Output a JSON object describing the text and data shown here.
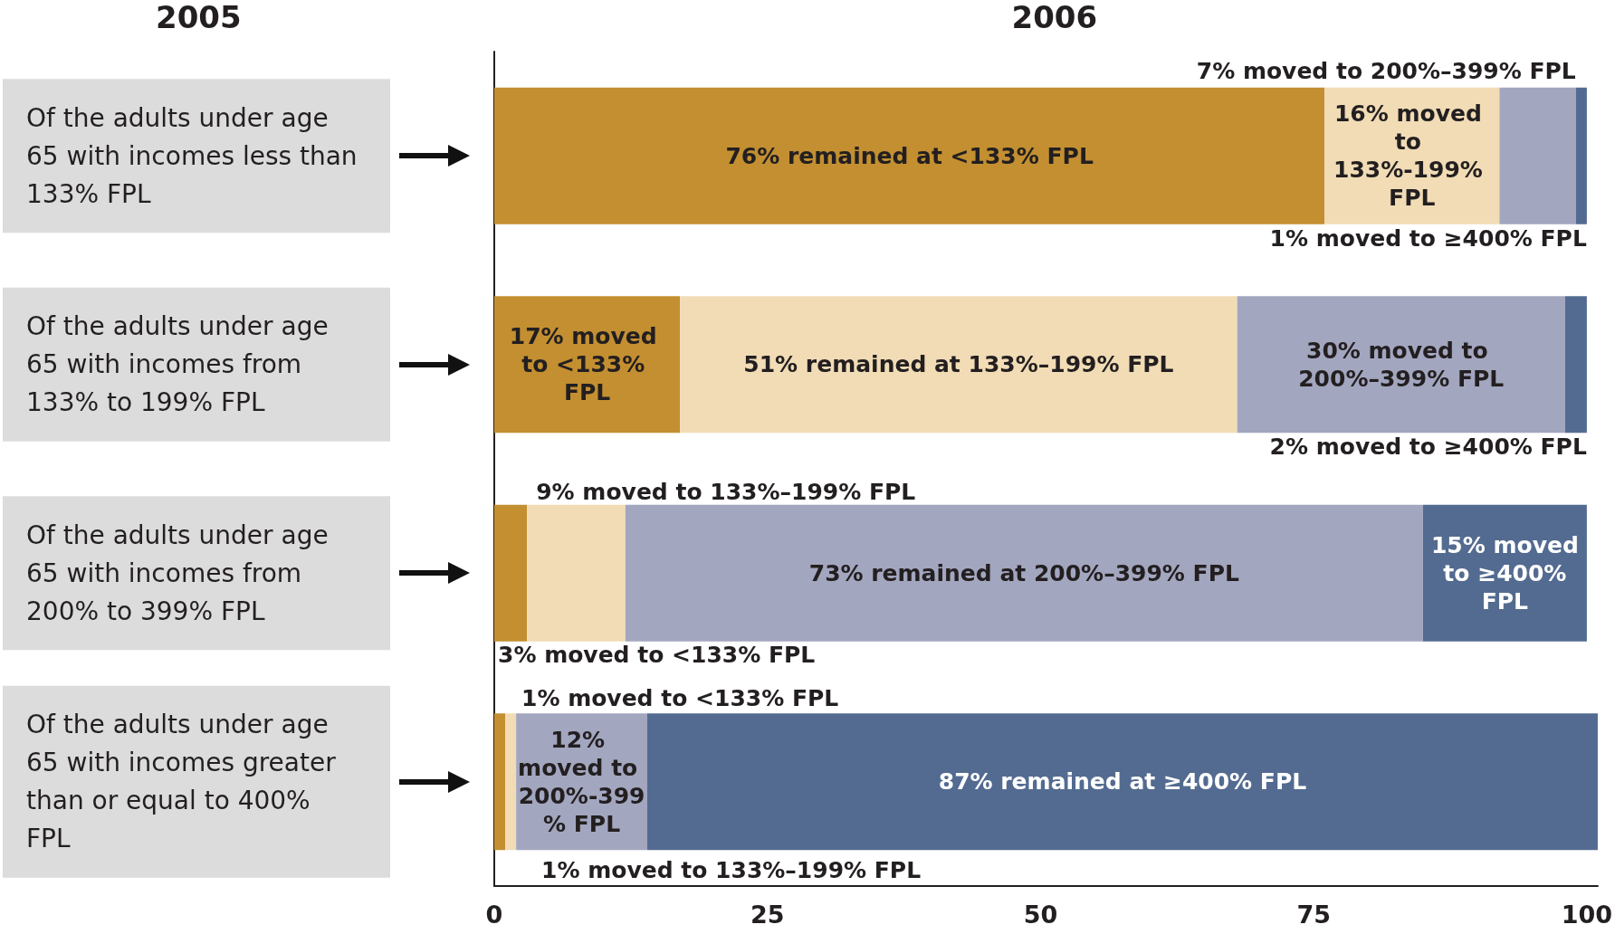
{
  "chart_data": {
    "type": "bar",
    "orientation": "horizontal",
    "stacked": true,
    "annotations": [
      "2005",
      "2006"
    ],
    "categories": [
      "Of the adults under age 65 with incomes less than 133% FPL",
      "Of the adults under age 65 with incomes from 133% to 199% FPL",
      "Of the adults under age 65 with incomes from 200% to 399% FPL",
      "Of the adults under age 65 with incomes greater than or equal to 400% FPL"
    ],
    "series": [
      {
        "color": "#c38f31",
        "values": [
          76,
          17,
          3,
          1
        ],
        "value_labels": [
          "76% remained at <133% FPL",
          "17% moved to <133% FPL",
          "3% moved to <133% FPL",
          "1% moved to <133% FPL"
        ]
      },
      {
        "color": "#f1dcb6",
        "values": [
          16,
          51,
          9,
          1
        ],
        "value_labels": [
          "16% moved to 133%-199% FPL",
          "51% remained at 133%–199% FPL",
          "9% moved to 133%–199% FPL",
          "1% moved to 133%–199% FPL"
        ]
      },
      {
        "color": "#a3a6bf",
        "values": [
          7,
          30,
          73,
          12
        ],
        "value_labels": [
          "7% moved to 200%–399% FPL",
          "30% moved to 200%–399% FPL",
          "73% remained at 200%–399% FPL",
          "12% moved to 200%-399% FPL"
        ]
      },
      {
        "color": "#536b90",
        "values": [
          1,
          2,
          15,
          87
        ],
        "value_labels": [
          "1% moved to ≥400% FPL",
          "2% moved to ≥400% FPL",
          "15% moved to ≥400% FPL",
          "87% remained at ≥400% FPL"
        ]
      }
    ],
    "xlim": [
      0,
      101
    ],
    "xticks": [
      0,
      25,
      50,
      75,
      100
    ],
    "grid": false
  }
}
